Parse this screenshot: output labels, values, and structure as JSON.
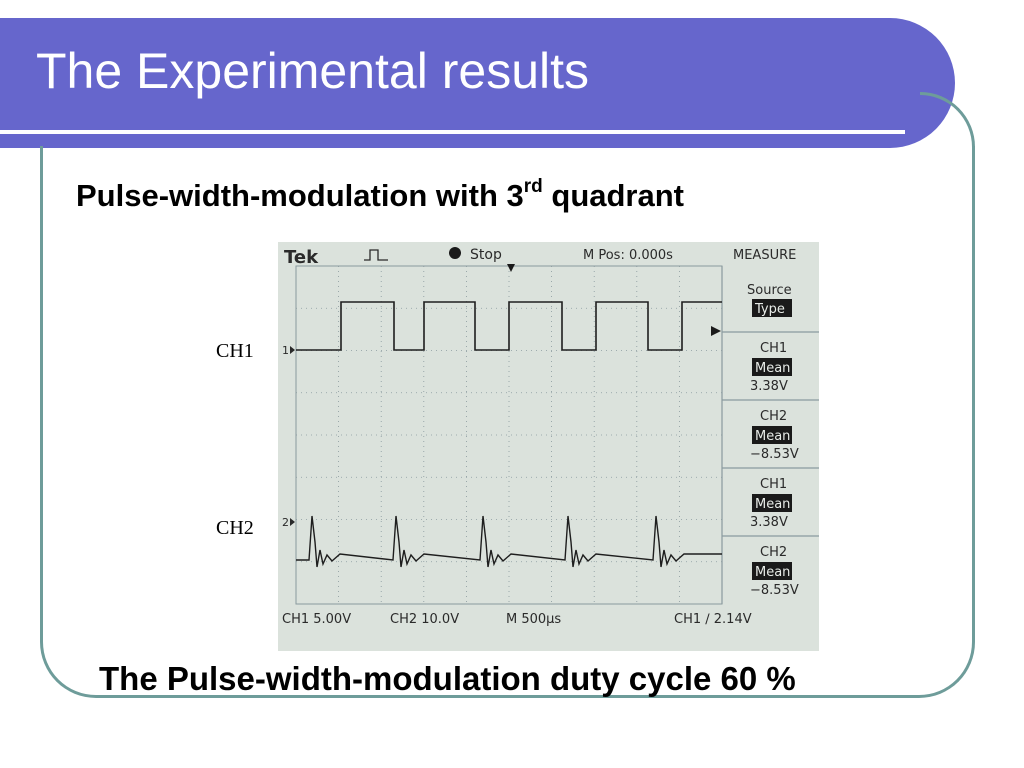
{
  "slide": {
    "title": "The Experimental results",
    "subtitle_main": "Pulse-width-modulation with 3",
    "subtitle_sup": "rd",
    "subtitle_end": " quadrant",
    "ch1_label": "CH1",
    "ch2_label": "CH2",
    "caption": "The Pulse-width-modulation duty cycle 60 %"
  },
  "scope": {
    "brand": "Tek",
    "run_state": "Stop",
    "m_pos": "M Pos: 0.000s",
    "measure_header": "MEASURE",
    "source_label": "Source",
    "type_label": "Type",
    "measurements": [
      {
        "channel": "CH1",
        "kind": "Mean",
        "value": "3.38V"
      },
      {
        "channel": "CH2",
        "kind": "Mean",
        "value": "−8.53V"
      },
      {
        "channel": "CH1",
        "kind": "Mean",
        "value": "3.38V"
      },
      {
        "channel": "CH2",
        "kind": "Mean",
        "value": "−8.53V"
      }
    ],
    "ch1_marker": "1",
    "ch2_marker": "2",
    "bottom": {
      "ch1_scale": "CH1  5.00V",
      "ch2_scale": "CH2  10.0V",
      "timebase": "M 500µs",
      "trigger": "CH1  ∕  2.14V"
    },
    "colors": {
      "screen": "#dbe2dc",
      "trace": "#1e1e1e",
      "grid": "#8a9a9e",
      "highlight": "#1a1a1a"
    }
  }
}
